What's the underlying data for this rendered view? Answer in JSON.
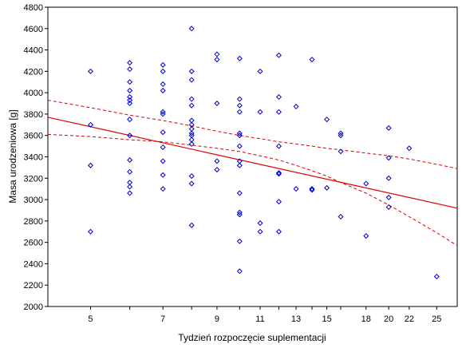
{
  "chart_data": {
    "type": "scatter",
    "title": "",
    "xlabel": "Tydzień rozpoczęcie suplementacji",
    "ylabel": "Masa urodzeniowa [g]",
    "x_scale": "log",
    "x_ticks": [
      5,
      6,
      7,
      8,
      9,
      10,
      11,
      12,
      13,
      14,
      15,
      16,
      18,
      20,
      22,
      25
    ],
    "x_tick_labels": [
      "5",
      "7",
      "9",
      "11",
      "13",
      "15",
      "18",
      "20",
      "22",
      "25"
    ],
    "x_tick_label_values": [
      5,
      7,
      9,
      11,
      13,
      15,
      18,
      20,
      22,
      25
    ],
    "xlim": [
      4.1,
      27.5
    ],
    "ylim": [
      2000,
      4800
    ],
    "y_ticks": [
      2000,
      2200,
      2400,
      2600,
      2800,
      3000,
      3200,
      3400,
      3600,
      3800,
      4000,
      4200,
      4400,
      4600,
      4800
    ],
    "grid": false,
    "colors": {
      "points": "#0000cc",
      "fit": "#dd0000",
      "ci": "#dd0000"
    },
    "points": [
      {
        "x": 5,
        "y": 4200
      },
      {
        "x": 5,
        "y": 3700
      },
      {
        "x": 5,
        "y": 3320
      },
      {
        "x": 5,
        "y": 2700
      },
      {
        "x": 6,
        "y": 4280
      },
      {
        "x": 6,
        "y": 4220
      },
      {
        "x": 6,
        "y": 4100
      },
      {
        "x": 6,
        "y": 4020
      },
      {
        "x": 6,
        "y": 3960
      },
      {
        "x": 6,
        "y": 3930
      },
      {
        "x": 6,
        "y": 3900
      },
      {
        "x": 6,
        "y": 3750
      },
      {
        "x": 6,
        "y": 3600
      },
      {
        "x": 6,
        "y": 3370
      },
      {
        "x": 6,
        "y": 3260
      },
      {
        "x": 6,
        "y": 3160
      },
      {
        "x": 6,
        "y": 3120
      },
      {
        "x": 6,
        "y": 3060
      },
      {
        "x": 7,
        "y": 4260
      },
      {
        "x": 7,
        "y": 4200
      },
      {
        "x": 7,
        "y": 4080
      },
      {
        "x": 7,
        "y": 4020
      },
      {
        "x": 7,
        "y": 3820
      },
      {
        "x": 7,
        "y": 3800
      },
      {
        "x": 7,
        "y": 3630
      },
      {
        "x": 7,
        "y": 3490
      },
      {
        "x": 7,
        "y": 3360
      },
      {
        "x": 7,
        "y": 3230
      },
      {
        "x": 7,
        "y": 3100
      },
      {
        "x": 8,
        "y": 4600
      },
      {
        "x": 8,
        "y": 4200
      },
      {
        "x": 8,
        "y": 4120
      },
      {
        "x": 8,
        "y": 3940
      },
      {
        "x": 8,
        "y": 3880
      },
      {
        "x": 8,
        "y": 3740
      },
      {
        "x": 8,
        "y": 3700
      },
      {
        "x": 8,
        "y": 3660
      },
      {
        "x": 8,
        "y": 3620
      },
      {
        "x": 8,
        "y": 3600
      },
      {
        "x": 8,
        "y": 3560
      },
      {
        "x": 8,
        "y": 3520
      },
      {
        "x": 8,
        "y": 3220
      },
      {
        "x": 8,
        "y": 3150
      },
      {
        "x": 8,
        "y": 2760
      },
      {
        "x": 9,
        "y": 4360
      },
      {
        "x": 9,
        "y": 4310
      },
      {
        "x": 9,
        "y": 3900
      },
      {
        "x": 9,
        "y": 3360
      },
      {
        "x": 9,
        "y": 3280
      },
      {
        "x": 10,
        "y": 4320
      },
      {
        "x": 10,
        "y": 3940
      },
      {
        "x": 10,
        "y": 3880
      },
      {
        "x": 10,
        "y": 3820
      },
      {
        "x": 10,
        "y": 3620
      },
      {
        "x": 10,
        "y": 3600
      },
      {
        "x": 10,
        "y": 3500
      },
      {
        "x": 10,
        "y": 3360
      },
      {
        "x": 10,
        "y": 3320
      },
      {
        "x": 10,
        "y": 3060
      },
      {
        "x": 10,
        "y": 2880
      },
      {
        "x": 10,
        "y": 2860
      },
      {
        "x": 10,
        "y": 2610
      },
      {
        "x": 10,
        "y": 2330
      },
      {
        "x": 11,
        "y": 4200
      },
      {
        "x": 11,
        "y": 3820
      },
      {
        "x": 11,
        "y": 2780
      },
      {
        "x": 11,
        "y": 2700
      },
      {
        "x": 12,
        "y": 4350
      },
      {
        "x": 12,
        "y": 3960
      },
      {
        "x": 12,
        "y": 3820
      },
      {
        "x": 12,
        "y": 3500
      },
      {
        "x": 12,
        "y": 3250
      },
      {
        "x": 12,
        "y": 3240
      },
      {
        "x": 12,
        "y": 2980
      },
      {
        "x": 12,
        "y": 2700
      },
      {
        "x": 13,
        "y": 3870
      },
      {
        "x": 13,
        "y": 3100
      },
      {
        "x": 14,
        "y": 4310
      },
      {
        "x": 14,
        "y": 3100
      },
      {
        "x": 14,
        "y": 3090
      },
      {
        "x": 15,
        "y": 3750
      },
      {
        "x": 15,
        "y": 3110
      },
      {
        "x": 16,
        "y": 3620
      },
      {
        "x": 16,
        "y": 3600
      },
      {
        "x": 16,
        "y": 3450
      },
      {
        "x": 16,
        "y": 2840
      },
      {
        "x": 18,
        "y": 3150
      },
      {
        "x": 18,
        "y": 2660
      },
      {
        "x": 20,
        "y": 3670
      },
      {
        "x": 20,
        "y": 3390
      },
      {
        "x": 20,
        "y": 3200
      },
      {
        "x": 20,
        "y": 3020
      },
      {
        "x": 20,
        "y": 2930
      },
      {
        "x": 22,
        "y": 3480
      },
      {
        "x": 25,
        "y": 2280
      }
    ],
    "fit_line": {
      "x": [
        4.1,
        27.5
      ],
      "y": [
        3770,
        2920
      ]
    },
    "ci_upper": {
      "x": [
        4.1,
        5,
        6,
        7,
        8,
        9,
        10,
        11,
        12,
        13,
        14,
        15,
        16,
        18,
        20,
        22,
        25,
        27.5
      ],
      "y": [
        3930,
        3860,
        3790,
        3740,
        3690,
        3640,
        3600,
        3570,
        3540,
        3520,
        3500,
        3480,
        3465,
        3435,
        3410,
        3380,
        3330,
        3290
      ]
    },
    "ci_lower": {
      "x": [
        4.1,
        5,
        6,
        7,
        8,
        9,
        10,
        11,
        12,
        13,
        14,
        15,
        16,
        18,
        20,
        22,
        25,
        27.5
      ],
      "y": [
        3610,
        3590,
        3560,
        3540,
        3510,
        3480,
        3450,
        3410,
        3370,
        3320,
        3270,
        3220,
        3160,
        3060,
        2950,
        2840,
        2690,
        2570
      ]
    }
  }
}
